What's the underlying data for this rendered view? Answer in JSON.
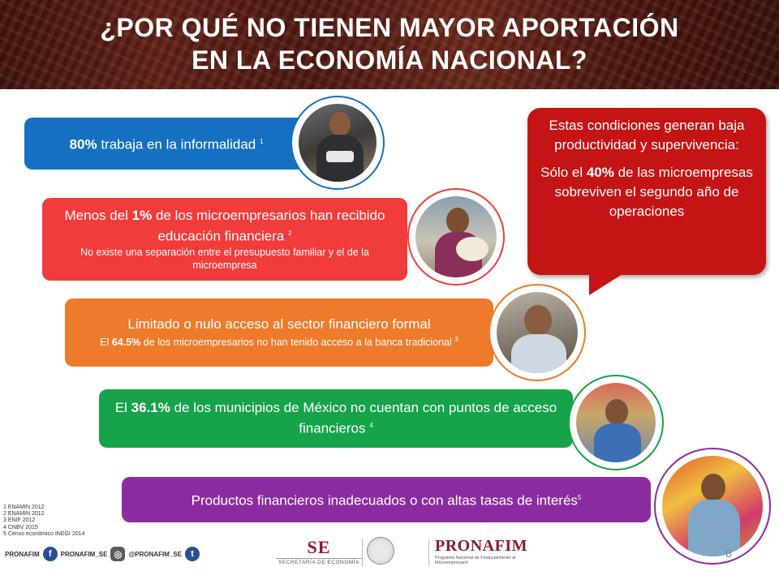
{
  "header": {
    "title_line1": "¿POR QUÉ NO TIENEN MAYOR APORTACIÓN",
    "title_line2": "EN LA ECONOMÍA NACIONAL?"
  },
  "bars": [
    {
      "color": "#1570c2",
      "pct": "80%",
      "text": " trabaja en la informalidad ",
      "ref": "1"
    },
    {
      "color": "#f23b3b",
      "pre": "Menos del ",
      "pct": "1%",
      "text": " de los microempresarios han recibido educación financiera ",
      "ref": "2",
      "sub": "No existe una separación entre el presupuesto familiar y el de la microempresa"
    },
    {
      "color": "#ee7a2b",
      "main": "Limitado o nulo acceso al sector financiero formal",
      "sub_pre": "El ",
      "sub_pct": "64.5%",
      "sub_text": " de los microempresarios no han tenido acceso a la banca tradicional ",
      "ref": "3"
    },
    {
      "color": "#16a34a",
      "pre": "El ",
      "pct": "36.1%",
      "text": " de los municipios de México no cuentan con puntos de acceso financieros ",
      "ref": "4"
    },
    {
      "color": "#8a2ca0",
      "text": "Productos financieros inadecuados o con altas tasas de interés",
      "ref": "5"
    }
  ],
  "callout": {
    "line1": "Estas condiciones generan baja productividad y supervivencia:",
    "line2_pre": "Sólo el ",
    "line2_pct": "40%",
    "line2_text": " de las microempresas sobreviven el segundo año de operaciones"
  },
  "footnotes": [
    "1 ENAMIN 2012",
    "2 ENAMIN 2012",
    "3 ENIF 2012",
    "4 CNBV 2015",
    "5 Censo económico INEGI 2014"
  ],
  "footer": {
    "pronafim_label": "PRONAFIM",
    "fb_label": "PRONAFIM_SE",
    "ig_label": "@PRONAFIM_SE",
    "se_logo": "SE",
    "se_sub": "SECRETARÍA DE ECONOMÍA",
    "pro_logo": "PRONAFIM",
    "pro_sub": "Programa Nacional de Financiamiento al Microempresario",
    "page_number": "6"
  },
  "icons": [
    "facebook-icon",
    "instagram-icon",
    "twitter-icon",
    "mexico-seal-icon"
  ]
}
